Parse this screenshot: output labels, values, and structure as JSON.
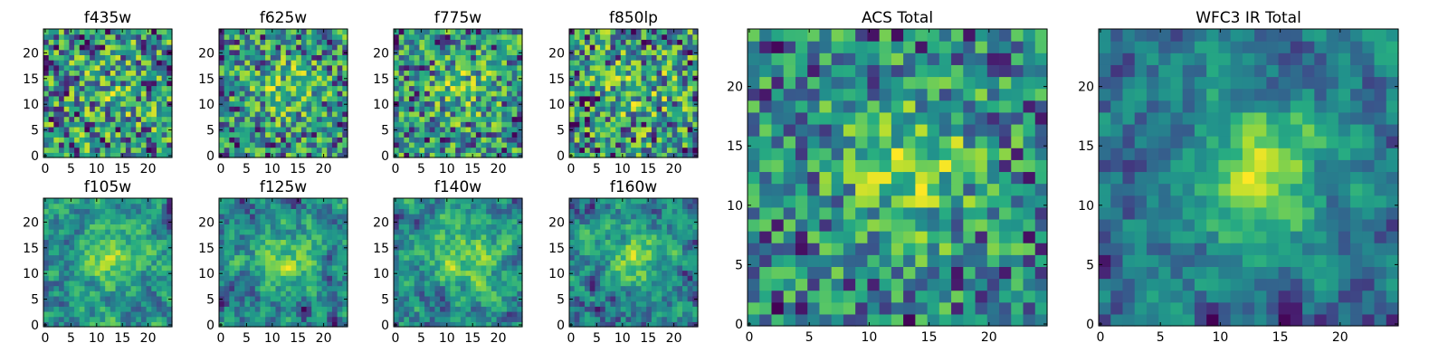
{
  "figure": {
    "background": "#ffffff"
  },
  "chart_data": [
    {
      "type": "heatmap",
      "title": "f435w",
      "grid_size": 25,
      "xticks": [
        0,
        5,
        10,
        15,
        20
      ],
      "yticks": [
        0,
        5,
        10,
        15,
        20
      ],
      "xlim": [
        0,
        25
      ],
      "ylim": [
        0,
        25
      ],
      "colormap": "viridis",
      "seed": 11,
      "smooth": 0,
      "bright_spot": 0.15,
      "contrast": 1.05
    },
    {
      "type": "heatmap",
      "title": "f625w",
      "grid_size": 25,
      "xticks": [
        0,
        5,
        10,
        15,
        20
      ],
      "yticks": [
        0,
        5,
        10,
        15,
        20
      ],
      "xlim": [
        0,
        25
      ],
      "ylim": [
        0,
        25
      ],
      "colormap": "viridis",
      "seed": 23,
      "smooth": 0,
      "bright_spot": 0.3,
      "contrast": 1.0
    },
    {
      "type": "heatmap",
      "title": "f775w",
      "grid_size": 25,
      "xticks": [
        0,
        5,
        10,
        15,
        20
      ],
      "yticks": [
        0,
        5,
        10,
        15,
        20
      ],
      "xlim": [
        0,
        25
      ],
      "ylim": [
        0,
        25
      ],
      "colormap": "viridis",
      "seed": 37,
      "smooth": 0,
      "bright_spot": 0.25,
      "contrast": 1.0
    },
    {
      "type": "heatmap",
      "title": "f850lp",
      "grid_size": 25,
      "xticks": [
        0,
        5,
        10,
        15,
        20
      ],
      "yticks": [
        0,
        5,
        10,
        15,
        20
      ],
      "xlim": [
        0,
        25
      ],
      "ylim": [
        0,
        25
      ],
      "colormap": "viridis",
      "seed": 41,
      "smooth": 0,
      "bright_spot": 0.2,
      "contrast": 1.1
    },
    {
      "type": "heatmap",
      "title": "f105w",
      "grid_size": 25,
      "xticks": [
        0,
        5,
        10,
        15,
        20
      ],
      "yticks": [
        0,
        5,
        10,
        15,
        20
      ],
      "xlim": [
        0,
        25
      ],
      "ylim": [
        0,
        25
      ],
      "colormap": "viridis",
      "seed": 53,
      "smooth": 1,
      "bright_spot": 0.35,
      "contrast": 0.9
    },
    {
      "type": "heatmap",
      "title": "f125w",
      "grid_size": 25,
      "xticks": [
        0,
        5,
        10,
        15,
        20
      ],
      "yticks": [
        0,
        5,
        10,
        15,
        20
      ],
      "xlim": [
        0,
        25
      ],
      "ylim": [
        0,
        25
      ],
      "colormap": "viridis",
      "seed": 67,
      "smooth": 1,
      "bright_spot": 0.35,
      "contrast": 1.0
    },
    {
      "type": "heatmap",
      "title": "f140w",
      "grid_size": 25,
      "xticks": [
        0,
        5,
        10,
        15,
        20
      ],
      "yticks": [
        0,
        5,
        10,
        15,
        20
      ],
      "xlim": [
        0,
        25
      ],
      "ylim": [
        0,
        25
      ],
      "colormap": "viridis",
      "seed": 79,
      "smooth": 1,
      "bright_spot": 0.4,
      "contrast": 0.9
    },
    {
      "type": "heatmap",
      "title": "f160w",
      "grid_size": 25,
      "xticks": [
        0,
        5,
        10,
        15,
        20
      ],
      "yticks": [
        0,
        5,
        10,
        15,
        20
      ],
      "xlim": [
        0,
        25
      ],
      "ylim": [
        0,
        25
      ],
      "colormap": "viridis",
      "seed": 83,
      "smooth": 1,
      "bright_spot": 0.45,
      "contrast": 0.95
    },
    {
      "type": "heatmap",
      "title": "ACS Total",
      "grid_size": 25,
      "xticks": [
        0,
        5,
        10,
        15,
        20
      ],
      "yticks": [
        0,
        5,
        10,
        15,
        20
      ],
      "xlim": [
        0,
        25
      ],
      "ylim": [
        0,
        25
      ],
      "colormap": "viridis",
      "seed": 97,
      "smooth": 0,
      "bright_spot": 0.5,
      "contrast": 1.0
    },
    {
      "type": "heatmap",
      "title": "WFC3 IR Total",
      "grid_size": 25,
      "xticks": [
        0,
        5,
        10,
        15,
        20
      ],
      "yticks": [
        0,
        5,
        10,
        15,
        20
      ],
      "xlim": [
        0,
        25
      ],
      "ylim": [
        0,
        25
      ],
      "colormap": "viridis",
      "seed": 101,
      "smooth": 1,
      "bright_spot": 0.6,
      "contrast": 1.0
    }
  ]
}
